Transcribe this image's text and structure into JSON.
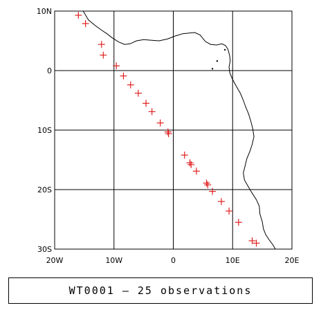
{
  "map": {
    "lon_range": [
      -20,
      20
    ],
    "lat_range": [
      -30,
      10
    ],
    "x_ticks": [
      {
        "value": -20,
        "label": "20W"
      },
      {
        "value": -10,
        "label": "10W"
      },
      {
        "value": 0,
        "label": "0"
      },
      {
        "value": 10,
        "label": "10E"
      },
      {
        "value": 20,
        "label": "20E"
      }
    ],
    "y_ticks": [
      {
        "value": 10,
        "label": "10N"
      },
      {
        "value": 0,
        "label": "0"
      },
      {
        "value": -10,
        "label": "10S"
      },
      {
        "value": -20,
        "label": "20S"
      },
      {
        "value": -30,
        "label": "30S"
      }
    ],
    "gridlines": true,
    "marker_color": "#e02020",
    "marker_symbol": "plus",
    "observations": [
      [
        -16.0,
        9.3
      ],
      [
        -14.8,
        7.9
      ],
      [
        -12.1,
        4.4
      ],
      [
        -11.8,
        2.6
      ],
      [
        -9.6,
        0.8
      ],
      [
        -8.4,
        -0.9
      ],
      [
        -7.2,
        -2.4
      ],
      [
        -5.9,
        -3.8
      ],
      [
        -4.6,
        -5.5
      ],
      [
        -3.6,
        -6.9
      ],
      [
        -2.2,
        -8.8
      ],
      [
        -0.9,
        -10.3
      ],
      [
        -0.8,
        -10.6
      ],
      [
        1.9,
        -14.2
      ],
      [
        2.8,
        -15.5
      ],
      [
        3.0,
        -15.8
      ],
      [
        3.9,
        -16.9
      ],
      [
        5.6,
        -18.9
      ],
      [
        5.8,
        -19.2
      ],
      [
        6.6,
        -20.3
      ],
      [
        8.1,
        -22.0
      ],
      [
        9.4,
        -23.6
      ],
      [
        11.0,
        -25.5
      ],
      [
        13.3,
        -28.6
      ],
      [
        14.0,
        -29.0
      ]
    ],
    "coastline": [
      [
        -15.2,
        10.0
      ],
      [
        -14.3,
        8.5
      ],
      [
        -13.2,
        7.6
      ],
      [
        -12.1,
        6.8
      ],
      [
        -11.2,
        6.2
      ],
      [
        -10.3,
        5.5
      ],
      [
        -9.2,
        4.8
      ],
      [
        -8.2,
        4.4
      ],
      [
        -7.3,
        4.5
      ],
      [
        -6.2,
        5.0
      ],
      [
        -5.0,
        5.2
      ],
      [
        -3.8,
        5.1
      ],
      [
        -2.4,
        5.0
      ],
      [
        -1.0,
        5.3
      ],
      [
        0.3,
        5.8
      ],
      [
        1.6,
        6.2
      ],
      [
        2.7,
        6.3
      ],
      [
        3.6,
        6.4
      ],
      [
        4.5,
        6.0
      ],
      [
        5.4,
        4.9
      ],
      [
        6.3,
        4.4
      ],
      [
        7.3,
        4.3
      ],
      [
        8.2,
        4.5
      ],
      [
        8.8,
        4.2
      ],
      [
        9.2,
        3.6
      ],
      [
        9.5,
        2.5
      ],
      [
        9.6,
        1.6
      ],
      [
        9.4,
        0.6
      ],
      [
        9.5,
        -0.3
      ],
      [
        9.9,
        -1.3
      ],
      [
        10.6,
        -2.6
      ],
      [
        11.3,
        -3.8
      ],
      [
        11.8,
        -5.0
      ],
      [
        12.2,
        -6.1
      ],
      [
        12.7,
        -7.3
      ],
      [
        13.1,
        -8.6
      ],
      [
        13.4,
        -9.8
      ],
      [
        13.6,
        -11.1
      ],
      [
        13.3,
        -12.4
      ],
      [
        12.9,
        -13.6
      ],
      [
        12.4,
        -14.8
      ],
      [
        12.1,
        -16.0
      ],
      [
        11.8,
        -17.2
      ],
      [
        12.0,
        -18.4
      ],
      [
        12.7,
        -19.6
      ],
      [
        13.3,
        -20.6
      ],
      [
        14.0,
        -21.7
      ],
      [
        14.5,
        -22.8
      ],
      [
        14.6,
        -24.1
      ],
      [
        15.0,
        -25.4
      ],
      [
        15.2,
        -26.6
      ],
      [
        15.6,
        -27.6
      ],
      [
        16.2,
        -28.5
      ],
      [
        16.8,
        -29.3
      ],
      [
        17.2,
        -30.0
      ]
    ]
  },
  "caption": {
    "text": "WT0001 — 25 observations"
  }
}
